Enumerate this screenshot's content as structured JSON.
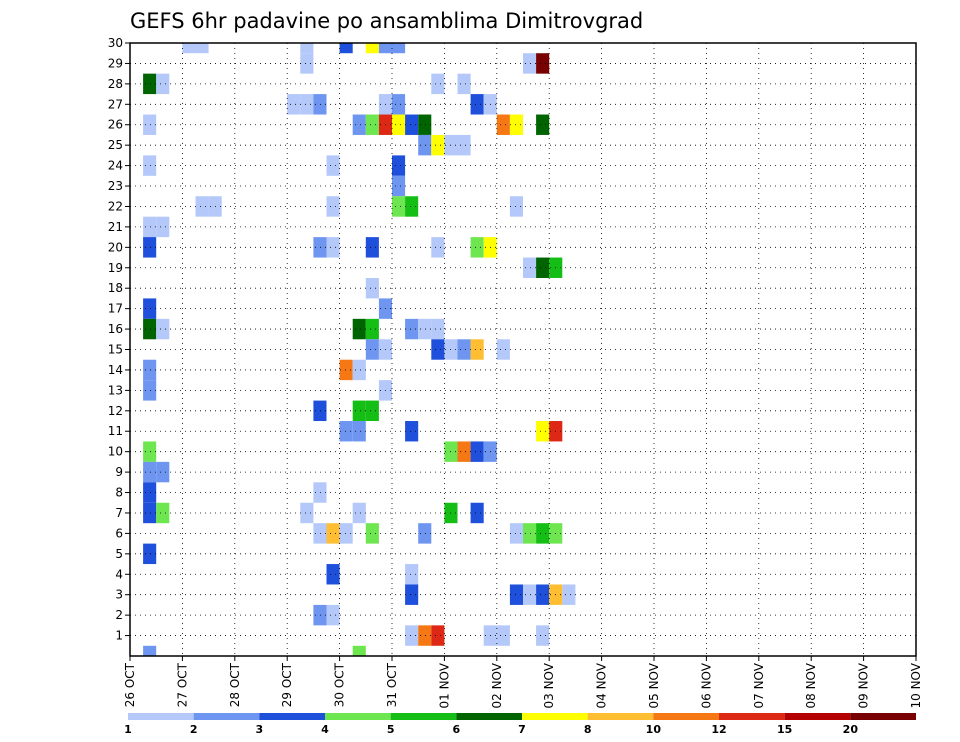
{
  "chart_data": {
    "type": "heatmap",
    "title": "GEFS 6hr padavine po ansamblima Dimitrovgrad",
    "x_tick_labels": [
      "26 OCT",
      "27 OCT",
      "28 OCT",
      "29 OCT",
      "30 OCT",
      "31 OCT",
      "01 NOV",
      "02 NOV",
      "03 NOV",
      "04 NOV",
      "05 NOV",
      "06 NOV",
      "07 NOV",
      "08 NOV",
      "09 NOV",
      "10 NOV"
    ],
    "y_tick_labels": [
      "1",
      "2",
      "3",
      "4",
      "5",
      "6",
      "7",
      "8",
      "9",
      "10",
      "11",
      "12",
      "13",
      "14",
      "15",
      "16",
      "17",
      "18",
      "19",
      "20",
      "21",
      "22",
      "23",
      "24",
      "25",
      "26",
      "27",
      "28",
      "29",
      "30"
    ],
    "y_range": [
      0,
      30
    ],
    "x_range_days": [
      0,
      15
    ],
    "grid": "dotted",
    "colorbar": {
      "bounds": [
        "1",
        "2",
        "3",
        "4",
        "5",
        "6",
        "7",
        "8",
        "10",
        "12",
        "15",
        "20"
      ],
      "colors": [
        "#b4c8fa",
        "#6e96f0",
        "#1e50dc",
        "#6ee650",
        "#14be14",
        "#006400",
        "#ffff00",
        "#ffbe32",
        "#f57814",
        "#dc2814",
        "#b40000",
        "#780000"
      ]
    },
    "cells_note": "each cell: [time step in 6h units from 26 OCT 00Z, member, color class index 0-11]",
    "cells": [
      [
        4,
        30,
        0
      ],
      [
        5,
        30,
        0
      ],
      [
        13,
        30,
        0
      ],
      [
        16,
        30,
        2
      ],
      [
        18,
        30,
        6
      ],
      [
        19,
        30,
        1
      ],
      [
        20,
        30,
        1
      ],
      [
        13,
        29,
        0
      ],
      [
        30,
        29,
        0
      ],
      [
        31,
        29,
        11
      ],
      [
        1,
        28,
        5
      ],
      [
        2,
        28,
        0
      ],
      [
        23,
        28,
        0
      ],
      [
        25,
        28,
        0
      ],
      [
        12,
        27,
        0
      ],
      [
        13,
        27,
        0
      ],
      [
        14,
        27,
        1
      ],
      [
        19,
        27,
        0
      ],
      [
        20,
        27,
        1
      ],
      [
        26,
        27,
        2
      ],
      [
        27,
        27,
        0
      ],
      [
        1,
        26,
        0
      ],
      [
        17,
        26,
        1
      ],
      [
        18,
        26,
        3
      ],
      [
        19,
        26,
        9
      ],
      [
        20,
        26,
        6
      ],
      [
        21,
        26,
        2
      ],
      [
        22,
        26,
        5
      ],
      [
        28,
        26,
        8
      ],
      [
        29,
        26,
        6
      ],
      [
        31,
        26,
        5
      ],
      [
        22,
        25,
        1
      ],
      [
        23,
        25,
        6
      ],
      [
        24,
        25,
        0
      ],
      [
        25,
        25,
        0
      ],
      [
        1,
        24,
        0
      ],
      [
        15,
        24,
        0
      ],
      [
        20,
        24,
        2
      ],
      [
        20,
        23,
        1
      ],
      [
        5,
        22,
        0
      ],
      [
        6,
        22,
        0
      ],
      [
        15,
        22,
        0
      ],
      [
        20,
        22,
        3
      ],
      [
        21,
        22,
        4
      ],
      [
        29,
        22,
        0
      ],
      [
        1,
        21,
        0
      ],
      [
        2,
        21,
        0
      ],
      [
        1,
        20,
        2
      ],
      [
        14,
        20,
        1
      ],
      [
        15,
        20,
        0
      ],
      [
        18,
        20,
        2
      ],
      [
        23,
        20,
        0
      ],
      [
        26,
        20,
        3
      ],
      [
        27,
        20,
        6
      ],
      [
        30,
        19,
        0
      ],
      [
        31,
        19,
        5
      ],
      [
        32,
        19,
        4
      ],
      [
        18,
        18,
        0
      ],
      [
        1,
        17,
        2
      ],
      [
        19,
        17,
        1
      ],
      [
        1,
        16,
        5
      ],
      [
        2,
        16,
        0
      ],
      [
        17,
        16,
        5
      ],
      [
        18,
        16,
        4
      ],
      [
        21,
        16,
        1
      ],
      [
        22,
        16,
        0
      ],
      [
        23,
        16,
        0
      ],
      [
        18,
        15,
        1
      ],
      [
        19,
        15,
        0
      ],
      [
        23,
        15,
        2
      ],
      [
        24,
        15,
        0
      ],
      [
        25,
        15,
        1
      ],
      [
        26,
        15,
        7
      ],
      [
        28,
        15,
        0
      ],
      [
        1,
        14,
        1
      ],
      [
        16,
        14,
        8
      ],
      [
        17,
        14,
        0
      ],
      [
        1,
        13,
        1
      ],
      [
        19,
        13,
        0
      ],
      [
        14,
        12,
        2
      ],
      [
        17,
        12,
        4
      ],
      [
        18,
        12,
        4
      ],
      [
        16,
        11,
        1
      ],
      [
        17,
        11,
        1
      ],
      [
        21,
        11,
        2
      ],
      [
        31,
        11,
        6
      ],
      [
        32,
        11,
        9
      ],
      [
        1,
        10,
        3
      ],
      [
        24,
        10,
        3
      ],
      [
        25,
        10,
        8
      ],
      [
        26,
        10,
        2
      ],
      [
        27,
        10,
        1
      ],
      [
        1,
        9,
        1
      ],
      [
        2,
        9,
        1
      ],
      [
        1,
        8,
        2
      ],
      [
        14,
        8,
        0
      ],
      [
        1,
        7,
        2
      ],
      [
        2,
        7,
        3
      ],
      [
        13,
        7,
        0
      ],
      [
        17,
        7,
        0
      ],
      [
        24,
        7,
        4
      ],
      [
        26,
        7,
        2
      ],
      [
        14,
        6,
        0
      ],
      [
        15,
        6,
        7
      ],
      [
        16,
        6,
        0
      ],
      [
        18,
        6,
        3
      ],
      [
        22,
        6,
        1
      ],
      [
        29,
        6,
        0
      ],
      [
        30,
        6,
        3
      ],
      [
        31,
        6,
        4
      ],
      [
        32,
        6,
        3
      ],
      [
        1,
        5,
        2
      ],
      [
        15,
        4,
        2
      ],
      [
        21,
        4,
        0
      ],
      [
        21,
        3,
        2
      ],
      [
        29,
        3,
        2
      ],
      [
        30,
        3,
        0
      ],
      [
        31,
        3,
        2
      ],
      [
        32,
        3,
        7
      ],
      [
        33,
        3,
        0
      ],
      [
        14,
        2,
        1
      ],
      [
        15,
        2,
        0
      ],
      [
        21,
        1,
        0
      ],
      [
        22,
        1,
        8
      ],
      [
        23,
        1,
        9
      ],
      [
        27,
        1,
        0
      ],
      [
        28,
        1,
        0
      ],
      [
        31,
        1,
        0
      ],
      [
        1,
        0,
        1
      ],
      [
        17,
        0,
        3
      ]
    ]
  }
}
